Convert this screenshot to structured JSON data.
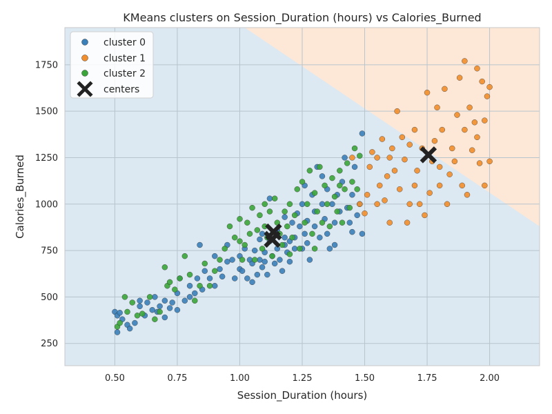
{
  "chart_data": {
    "type": "scatter",
    "title": "KMeans clusters on Session_Duration (hours) vs Calories_Burned",
    "xlabel": "Session_Duration (hours)",
    "ylabel": "Calories_Burned",
    "xlim": [
      0.3,
      2.2
    ],
    "ylim": [
      130,
      1950
    ],
    "xticks": [
      0.5,
      0.75,
      1.0,
      1.25,
      1.5,
      1.75,
      2.0
    ],
    "xtick_labels": [
      "0.50",
      "0.75",
      "1.00",
      "1.25",
      "1.50",
      "1.75",
      "2.00"
    ],
    "yticks": [
      250,
      500,
      750,
      1000,
      1250,
      1500,
      1750
    ],
    "ytick_labels": [
      "250",
      "500",
      "750",
      "1000",
      "1250",
      "1500",
      "1750"
    ],
    "grid": true,
    "legend_position": "top-left",
    "decision_regions": {
      "description_colors": {
        "cluster0_region": "#dce8f2",
        "cluster1_region": "#fde8d8"
      },
      "boundary": [
        [
          1.02,
          1950
        ],
        [
          2.2,
          880
        ]
      ]
    },
    "series": [
      {
        "name": "cluster 0",
        "color": "#3a80b9",
        "points": [
          [
            0.5,
            420
          ],
          [
            0.51,
            310
          ],
          [
            0.51,
            400
          ],
          [
            0.52,
            415
          ],
          [
            0.53,
            380
          ],
          [
            0.55,
            350
          ],
          [
            0.56,
            330
          ],
          [
            0.58,
            360
          ],
          [
            0.6,
            450
          ],
          [
            0.6,
            480
          ],
          [
            0.62,
            400
          ],
          [
            0.63,
            470
          ],
          [
            0.65,
            430
          ],
          [
            0.66,
            500
          ],
          [
            0.67,
            420
          ],
          [
            0.68,
            450
          ],
          [
            0.7,
            390
          ],
          [
            0.7,
            480
          ],
          [
            0.72,
            440
          ],
          [
            0.73,
            470
          ],
          [
            0.75,
            430
          ],
          [
            0.75,
            520
          ],
          [
            0.76,
            600
          ],
          [
            0.78,
            480
          ],
          [
            0.8,
            560
          ],
          [
            0.8,
            500
          ],
          [
            0.82,
            520
          ],
          [
            0.83,
            600
          ],
          [
            0.84,
            780
          ],
          [
            0.85,
            540
          ],
          [
            0.86,
            640
          ],
          [
            0.88,
            600
          ],
          [
            0.9,
            560
          ],
          [
            0.9,
            720
          ],
          [
            0.92,
            650
          ],
          [
            0.93,
            610
          ],
          [
            0.95,
            780
          ],
          [
            0.95,
            690
          ],
          [
            0.97,
            700
          ],
          [
            0.98,
            600
          ],
          [
            1.0,
            650
          ],
          [
            1.0,
            720
          ],
          [
            1.01,
            640
          ],
          [
            1.02,
            760
          ],
          [
            1.03,
            600
          ],
          [
            1.04,
            700
          ],
          [
            1.05,
            680
          ],
          [
            1.05,
            580
          ],
          [
            1.06,
            750
          ],
          [
            1.07,
            620
          ],
          [
            1.08,
            700
          ],
          [
            1.08,
            810
          ],
          [
            1.09,
            660
          ],
          [
            1.1,
            740
          ],
          [
            1.1,
            690
          ],
          [
            1.11,
            620
          ],
          [
            1.12,
            1030
          ],
          [
            1.12,
            800
          ],
          [
            1.13,
            720
          ],
          [
            1.14,
            680
          ],
          [
            1.15,
            760
          ],
          [
            1.15,
            860
          ],
          [
            1.16,
            700
          ],
          [
            1.17,
            640
          ],
          [
            1.18,
            780
          ],
          [
            1.18,
            820
          ],
          [
            1.19,
            740
          ],
          [
            1.2,
            800
          ],
          [
            1.2,
            690
          ],
          [
            1.21,
            900
          ],
          [
            1.22,
            760
          ],
          [
            1.22,
            820
          ],
          [
            1.23,
            950
          ],
          [
            1.24,
            880
          ],
          [
            1.25,
            760
          ],
          [
            1.25,
            1000
          ],
          [
            1.26,
            840
          ],
          [
            1.27,
            910
          ],
          [
            1.27,
            790
          ],
          [
            1.28,
            700
          ],
          [
            1.29,
            1050
          ],
          [
            1.3,
            880
          ],
          [
            1.3,
            960
          ],
          [
            1.31,
            1200
          ],
          [
            1.32,
            820
          ],
          [
            1.33,
            1000
          ],
          [
            1.34,
            920
          ],
          [
            1.35,
            1080
          ],
          [
            1.35,
            840
          ],
          [
            1.36,
            760
          ],
          [
            1.37,
            1000
          ],
          [
            1.38,
            900
          ],
          [
            1.39,
            1050
          ],
          [
            1.4,
            960
          ],
          [
            1.41,
            1120
          ],
          [
            1.42,
            1250
          ],
          [
            1.43,
            980
          ],
          [
            1.44,
            900
          ],
          [
            1.45,
            1050
          ],
          [
            1.46,
            1200
          ],
          [
            1.47,
            940
          ],
          [
            1.48,
            1000
          ],
          [
            1.49,
            1380
          ],
          [
            1.49,
            840
          ],
          [
            1.45,
            850
          ],
          [
            1.38,
            780
          ],
          [
            1.33,
            1150
          ],
          [
            1.26,
            1100
          ],
          [
            1.18,
            930
          ],
          [
            1.09,
            840
          ]
        ]
      },
      {
        "name": "cluster 1",
        "color": "#f28e2b",
        "points": [
          [
            1.45,
            1250
          ],
          [
            1.48,
            1000
          ],
          [
            1.5,
            950
          ],
          [
            1.51,
            1050
          ],
          [
            1.52,
            1200
          ],
          [
            1.53,
            1280
          ],
          [
            1.55,
            1000
          ],
          [
            1.55,
            1250
          ],
          [
            1.56,
            1100
          ],
          [
            1.57,
            1350
          ],
          [
            1.58,
            1020
          ],
          [
            1.59,
            1150
          ],
          [
            1.6,
            900
          ],
          [
            1.6,
            1250
          ],
          [
            1.61,
            1300
          ],
          [
            1.62,
            1180
          ],
          [
            1.63,
            1500
          ],
          [
            1.64,
            1080
          ],
          [
            1.65,
            1360
          ],
          [
            1.66,
            1240
          ],
          [
            1.67,
            900
          ],
          [
            1.68,
            1000
          ],
          [
            1.68,
            1320
          ],
          [
            1.7,
            1100
          ],
          [
            1.7,
            1400
          ],
          [
            1.71,
            1180
          ],
          [
            1.72,
            1000
          ],
          [
            1.73,
            1300
          ],
          [
            1.74,
            940
          ],
          [
            1.75,
            1600
          ],
          [
            1.76,
            1060
          ],
          [
            1.77,
            1230
          ],
          [
            1.78,
            1340
          ],
          [
            1.79,
            1520
          ],
          [
            1.8,
            1200
          ],
          [
            1.8,
            1100
          ],
          [
            1.81,
            1400
          ],
          [
            1.82,
            1620
          ],
          [
            1.83,
            1000
          ],
          [
            1.84,
            1160
          ],
          [
            1.85,
            1300
          ],
          [
            1.86,
            1230
          ],
          [
            1.87,
            1480
          ],
          [
            1.88,
            1680
          ],
          [
            1.89,
            1100
          ],
          [
            1.9,
            1770
          ],
          [
            1.9,
            1400
          ],
          [
            1.91,
            1050
          ],
          [
            1.92,
            1520
          ],
          [
            1.93,
            1290
          ],
          [
            1.94,
            1440
          ],
          [
            1.95,
            1730
          ],
          [
            1.95,
            1360
          ],
          [
            1.96,
            1220
          ],
          [
            1.97,
            1660
          ],
          [
            1.98,
            1100
          ],
          [
            1.98,
            1450
          ],
          [
            1.99,
            1580
          ],
          [
            2.0,
            1230
          ],
          [
            2.0,
            1630
          ]
        ]
      },
      {
        "name": "cluster 2",
        "color": "#3aa538",
        "points": [
          [
            0.51,
            340
          ],
          [
            0.52,
            360
          ],
          [
            0.54,
            500
          ],
          [
            0.55,
            420
          ],
          [
            0.57,
            470
          ],
          [
            0.59,
            400
          ],
          [
            0.61,
            410
          ],
          [
            0.64,
            500
          ],
          [
            0.66,
            380
          ],
          [
            0.68,
            420
          ],
          [
            0.7,
            660
          ],
          [
            0.71,
            560
          ],
          [
            0.72,
            580
          ],
          [
            0.74,
            540
          ],
          [
            0.76,
            600
          ],
          [
            0.78,
            720
          ],
          [
            0.8,
            620
          ],
          [
            0.82,
            480
          ],
          [
            0.84,
            560
          ],
          [
            0.86,
            680
          ],
          [
            0.88,
            560
          ],
          [
            0.9,
            640
          ],
          [
            0.92,
            700
          ],
          [
            0.94,
            760
          ],
          [
            0.96,
            880
          ],
          [
            0.98,
            820
          ],
          [
            1.0,
            920
          ],
          [
            1.01,
            700
          ],
          [
            1.02,
            780
          ],
          [
            1.03,
            900
          ],
          [
            1.04,
            840
          ],
          [
            1.05,
            980
          ],
          [
            1.06,
            700
          ],
          [
            1.07,
            860
          ],
          [
            1.08,
            940
          ],
          [
            1.09,
            760
          ],
          [
            1.1,
            880
          ],
          [
            1.11,
            820
          ],
          [
            1.12,
            960
          ],
          [
            1.13,
            720
          ],
          [
            1.14,
            1030
          ],
          [
            1.15,
            900
          ],
          [
            1.16,
            840
          ],
          [
            1.17,
            780
          ],
          [
            1.18,
            960
          ],
          [
            1.19,
            880
          ],
          [
            1.2,
            1000
          ],
          [
            1.21,
            820
          ],
          [
            1.22,
            940
          ],
          [
            1.23,
            1080
          ],
          [
            1.24,
            760
          ],
          [
            1.25,
            1120
          ],
          [
            1.26,
            900
          ],
          [
            1.27,
            1000
          ],
          [
            1.28,
            1180
          ],
          [
            1.29,
            840
          ],
          [
            1.3,
            1060
          ],
          [
            1.31,
            960
          ],
          [
            1.32,
            1200
          ],
          [
            1.33,
            900
          ],
          [
            1.34,
            1100
          ],
          [
            1.35,
            1000
          ],
          [
            1.36,
            880
          ],
          [
            1.37,
            1140
          ],
          [
            1.38,
            1040
          ],
          [
            1.39,
            960
          ],
          [
            1.4,
            1180
          ],
          [
            1.41,
            900
          ],
          [
            1.42,
            1080
          ],
          [
            1.43,
            1220
          ],
          [
            1.44,
            980
          ],
          [
            1.45,
            1120
          ],
          [
            1.46,
            1300
          ],
          [
            1.47,
            1080
          ],
          [
            1.48,
            1260
          ],
          [
            1.4,
            1100
          ],
          [
            1.3,
            760
          ],
          [
            1.2,
            730
          ],
          [
            1.1,
            1000
          ],
          [
            1.0,
            800
          ]
        ]
      }
    ],
    "centers": {
      "name": "centers",
      "color": "#222222",
      "points": [
        [
          1.755,
          1265
        ],
        [
          1.135,
          850
        ],
        [
          1.13,
          810
        ]
      ]
    }
  }
}
